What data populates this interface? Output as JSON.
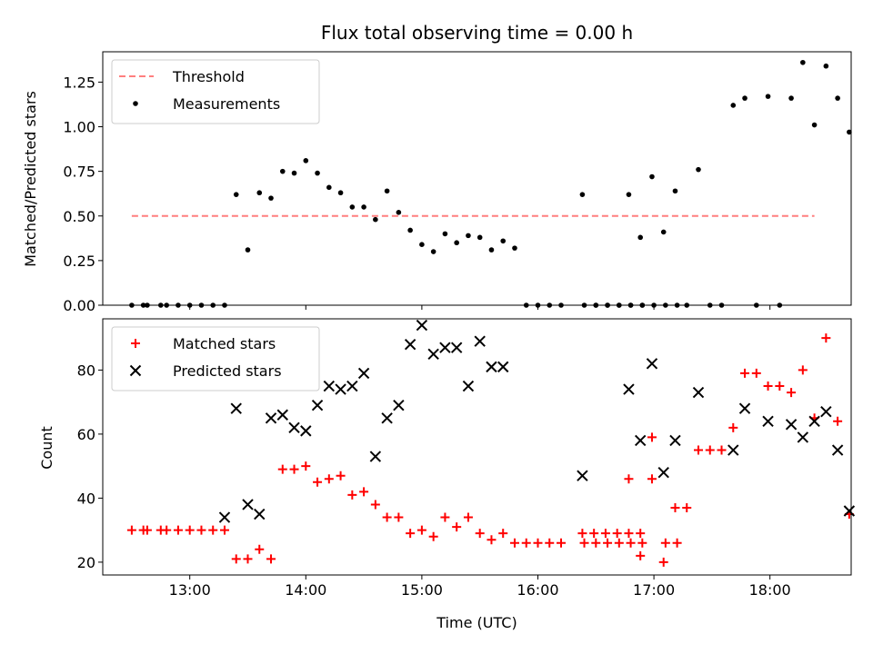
{
  "chart_data": [
    {
      "type": "scatter",
      "title": "Flux total observing time = 0.00 h",
      "xlabel": "",
      "ylabel": "Matched/Predicted stars",
      "xlim": [
        "12:15",
        "18:42"
      ],
      "ylim": [
        0,
        1.42
      ],
      "yticks": [
        "0.00",
        "0.25",
        "0.50",
        "0.75",
        "1.00",
        "1.25"
      ],
      "xticks": [
        "13:00",
        "14:00",
        "15:00",
        "16:00",
        "17:00",
        "18:00"
      ],
      "legend": "top-left",
      "threshold": {
        "name": "Threshold",
        "value": 0.5,
        "x": [
          "12:30",
          "18:23"
        ],
        "color": "#ff7f7f",
        "style": "dashed"
      },
      "series": [
        {
          "name": "Measurements",
          "color": "#000000",
          "marker": "dot",
          "points": [
            [
              "12:30",
              0.0
            ],
            [
              "12:36",
              0.0
            ],
            [
              "12:38",
              0.0
            ],
            [
              "12:45",
              0.0
            ],
            [
              "12:48",
              0.0
            ],
            [
              "12:54",
              0.0
            ],
            [
              "13:00",
              0.0
            ],
            [
              "13:06",
              0.0
            ],
            [
              "13:12",
              0.0
            ],
            [
              "13:18",
              0.0
            ],
            [
              "13:24",
              0.62
            ],
            [
              "13:30",
              0.31
            ],
            [
              "13:36",
              0.63
            ],
            [
              "13:42",
              0.6
            ],
            [
              "13:48",
              0.75
            ],
            [
              "13:54",
              0.74
            ],
            [
              "14:00",
              0.81
            ],
            [
              "14:06",
              0.74
            ],
            [
              "14:12",
              0.66
            ],
            [
              "14:18",
              0.63
            ],
            [
              "14:24",
              0.55
            ],
            [
              "14:30",
              0.55
            ],
            [
              "14:36",
              0.48
            ],
            [
              "14:42",
              0.64
            ],
            [
              "14:48",
              0.52
            ],
            [
              "14:54",
              0.42
            ],
            [
              "15:00",
              0.34
            ],
            [
              "15:06",
              0.3
            ],
            [
              "15:12",
              0.4
            ],
            [
              "15:18",
              0.35
            ],
            [
              "15:24",
              0.39
            ],
            [
              "15:30",
              0.38
            ],
            [
              "15:36",
              0.31
            ],
            [
              "15:42",
              0.36
            ],
            [
              "15:48",
              0.32
            ],
            [
              "15:54",
              0.0
            ],
            [
              "16:00",
              0.0
            ],
            [
              "16:06",
              0.0
            ],
            [
              "16:12",
              0.0
            ],
            [
              "16:24",
              0.0
            ],
            [
              "16:30",
              0.0
            ],
            [
              "16:36",
              0.0
            ],
            [
              "16:42",
              0.0
            ],
            [
              "16:48",
              0.0
            ],
            [
              "16:54",
              0.0
            ],
            [
              "17:06",
              0.0
            ],
            [
              "17:12",
              0.0
            ],
            [
              "16:23",
              0.62
            ],
            [
              "16:30",
              0.0
            ],
            [
              "16:36",
              0.0
            ],
            [
              "16:42",
              0.0
            ],
            [
              "16:48",
              0.0
            ],
            [
              "16:54",
              0.0
            ],
            [
              "17:00",
              0.0
            ],
            [
              "16:47",
              0.62
            ],
            [
              "16:53",
              0.38
            ],
            [
              "16:59",
              0.72
            ],
            [
              "17:05",
              0.41
            ],
            [
              "17:11",
              0.64
            ],
            [
              "17:17",
              0.0
            ],
            [
              "17:23",
              0.76
            ],
            [
              "17:29",
              0.0
            ],
            [
              "17:35",
              0.0
            ],
            [
              "17:41",
              1.12
            ],
            [
              "17:47",
              1.16
            ],
            [
              "17:53",
              0.0
            ],
            [
              "17:59",
              1.17
            ],
            [
              "18:05",
              0.0
            ],
            [
              "18:11",
              1.16
            ],
            [
              "18:17",
              1.36
            ],
            [
              "18:23",
              1.01
            ],
            [
              "18:29",
              1.34
            ],
            [
              "18:35",
              1.16
            ],
            [
              "18:41",
              0.97
            ]
          ]
        }
      ]
    },
    {
      "type": "scatter",
      "title": "",
      "xlabel": "Time (UTC)",
      "ylabel": "Count",
      "xlim": [
        "12:15",
        "18:42"
      ],
      "ylim": [
        16,
        96
      ],
      "yticks": [
        "20",
        "40",
        "60",
        "80"
      ],
      "xticks": [
        "13:00",
        "14:00",
        "15:00",
        "16:00",
        "17:00",
        "18:00"
      ],
      "legend": "top-left",
      "series": [
        {
          "name": "Matched stars",
          "color": "#ff0000",
          "marker": "plus",
          "points": [
            [
              "12:30",
              30
            ],
            [
              "12:36",
              30
            ],
            [
              "12:38",
              30
            ],
            [
              "12:45",
              30
            ],
            [
              "12:48",
              30
            ],
            [
              "12:54",
              30
            ],
            [
              "13:00",
              30
            ],
            [
              "13:06",
              30
            ],
            [
              "13:12",
              30
            ],
            [
              "13:18",
              30
            ],
            [
              "13:24",
              21
            ],
            [
              "13:30",
              21
            ],
            [
              "13:36",
              24
            ],
            [
              "13:42",
              21
            ],
            [
              "13:48",
              49
            ],
            [
              "13:54",
              49
            ],
            [
              "14:00",
              50
            ],
            [
              "14:06",
              45
            ],
            [
              "14:12",
              46
            ],
            [
              "14:18",
              47
            ],
            [
              "14:24",
              41
            ],
            [
              "14:30",
              42
            ],
            [
              "14:36",
              38
            ],
            [
              "14:42",
              34
            ],
            [
              "14:48",
              34
            ],
            [
              "14:54",
              29
            ],
            [
              "15:00",
              30
            ],
            [
              "15:06",
              28
            ],
            [
              "15:12",
              34
            ],
            [
              "15:18",
              31
            ],
            [
              "15:24",
              34
            ],
            [
              "15:30",
              29
            ],
            [
              "15:36",
              27
            ],
            [
              "15:42",
              29
            ],
            [
              "15:48",
              26
            ],
            [
              "15:54",
              26
            ],
            [
              "16:00",
              26
            ],
            [
              "16:06",
              26
            ],
            [
              "16:12",
              26
            ],
            [
              "16:24",
              26
            ],
            [
              "16:30",
              26
            ],
            [
              "16:36",
              26
            ],
            [
              "16:42",
              26
            ],
            [
              "16:48",
              26
            ],
            [
              "16:54",
              26
            ],
            [
              "17:06",
              26
            ],
            [
              "17:12",
              26
            ],
            [
              "16:23",
              29
            ],
            [
              "16:29",
              29
            ],
            [
              "16:35",
              29
            ],
            [
              "16:41",
              29
            ],
            [
              "16:47",
              29
            ],
            [
              "16:53",
              29
            ],
            [
              "16:59",
              46
            ],
            [
              "16:47",
              46
            ],
            [
              "16:53",
              22
            ],
            [
              "16:59",
              59
            ],
            [
              "17:05",
              20
            ],
            [
              "17:11",
              37
            ],
            [
              "17:17",
              37
            ],
            [
              "17:23",
              55
            ],
            [
              "17:29",
              55
            ],
            [
              "17:35",
              55
            ],
            [
              "17:41",
              62
            ],
            [
              "17:47",
              79
            ],
            [
              "17:53",
              79
            ],
            [
              "17:59",
              75
            ],
            [
              "18:05",
              75
            ],
            [
              "18:11",
              73
            ],
            [
              "18:17",
              80
            ],
            [
              "18:23",
              65
            ],
            [
              "18:29",
              90
            ],
            [
              "18:35",
              64
            ],
            [
              "18:41",
              35
            ]
          ]
        },
        {
          "name": "Predicted stars",
          "color": "#000000",
          "marker": "x",
          "points": [
            [
              "13:18",
              34
            ],
            [
              "13:24",
              68
            ],
            [
              "13:30",
              38
            ],
            [
              "13:36",
              35
            ],
            [
              "13:42",
              65
            ],
            [
              "13:48",
              66
            ],
            [
              "13:54",
              62
            ],
            [
              "14:00",
              61
            ],
            [
              "14:06",
              69
            ],
            [
              "14:12",
              75
            ],
            [
              "14:18",
              74
            ],
            [
              "14:24",
              75
            ],
            [
              "14:30",
              79
            ],
            [
              "14:36",
              53
            ],
            [
              "14:42",
              65
            ],
            [
              "14:48",
              69
            ],
            [
              "14:54",
              88
            ],
            [
              "15:00",
              94
            ],
            [
              "15:06",
              85
            ],
            [
              "15:12",
              87
            ],
            [
              "15:18",
              87
            ],
            [
              "15:24",
              75
            ],
            [
              "15:30",
              89
            ],
            [
              "15:36",
              81
            ],
            [
              "15:42",
              81
            ],
            [
              "16:23",
              47
            ],
            [
              "16:47",
              74
            ],
            [
              "16:53",
              58
            ],
            [
              "16:59",
              82
            ],
            [
              "17:05",
              48
            ],
            [
              "17:11",
              58
            ],
            [
              "17:23",
              73
            ],
            [
              "17:41",
              55
            ],
            [
              "17:47",
              68
            ],
            [
              "17:59",
              64
            ],
            [
              "18:11",
              63
            ],
            [
              "18:17",
              59
            ],
            [
              "18:23",
              64
            ],
            [
              "18:29",
              67
            ],
            [
              "18:35",
              55
            ],
            [
              "18:41",
              36
            ]
          ]
        }
      ]
    }
  ]
}
